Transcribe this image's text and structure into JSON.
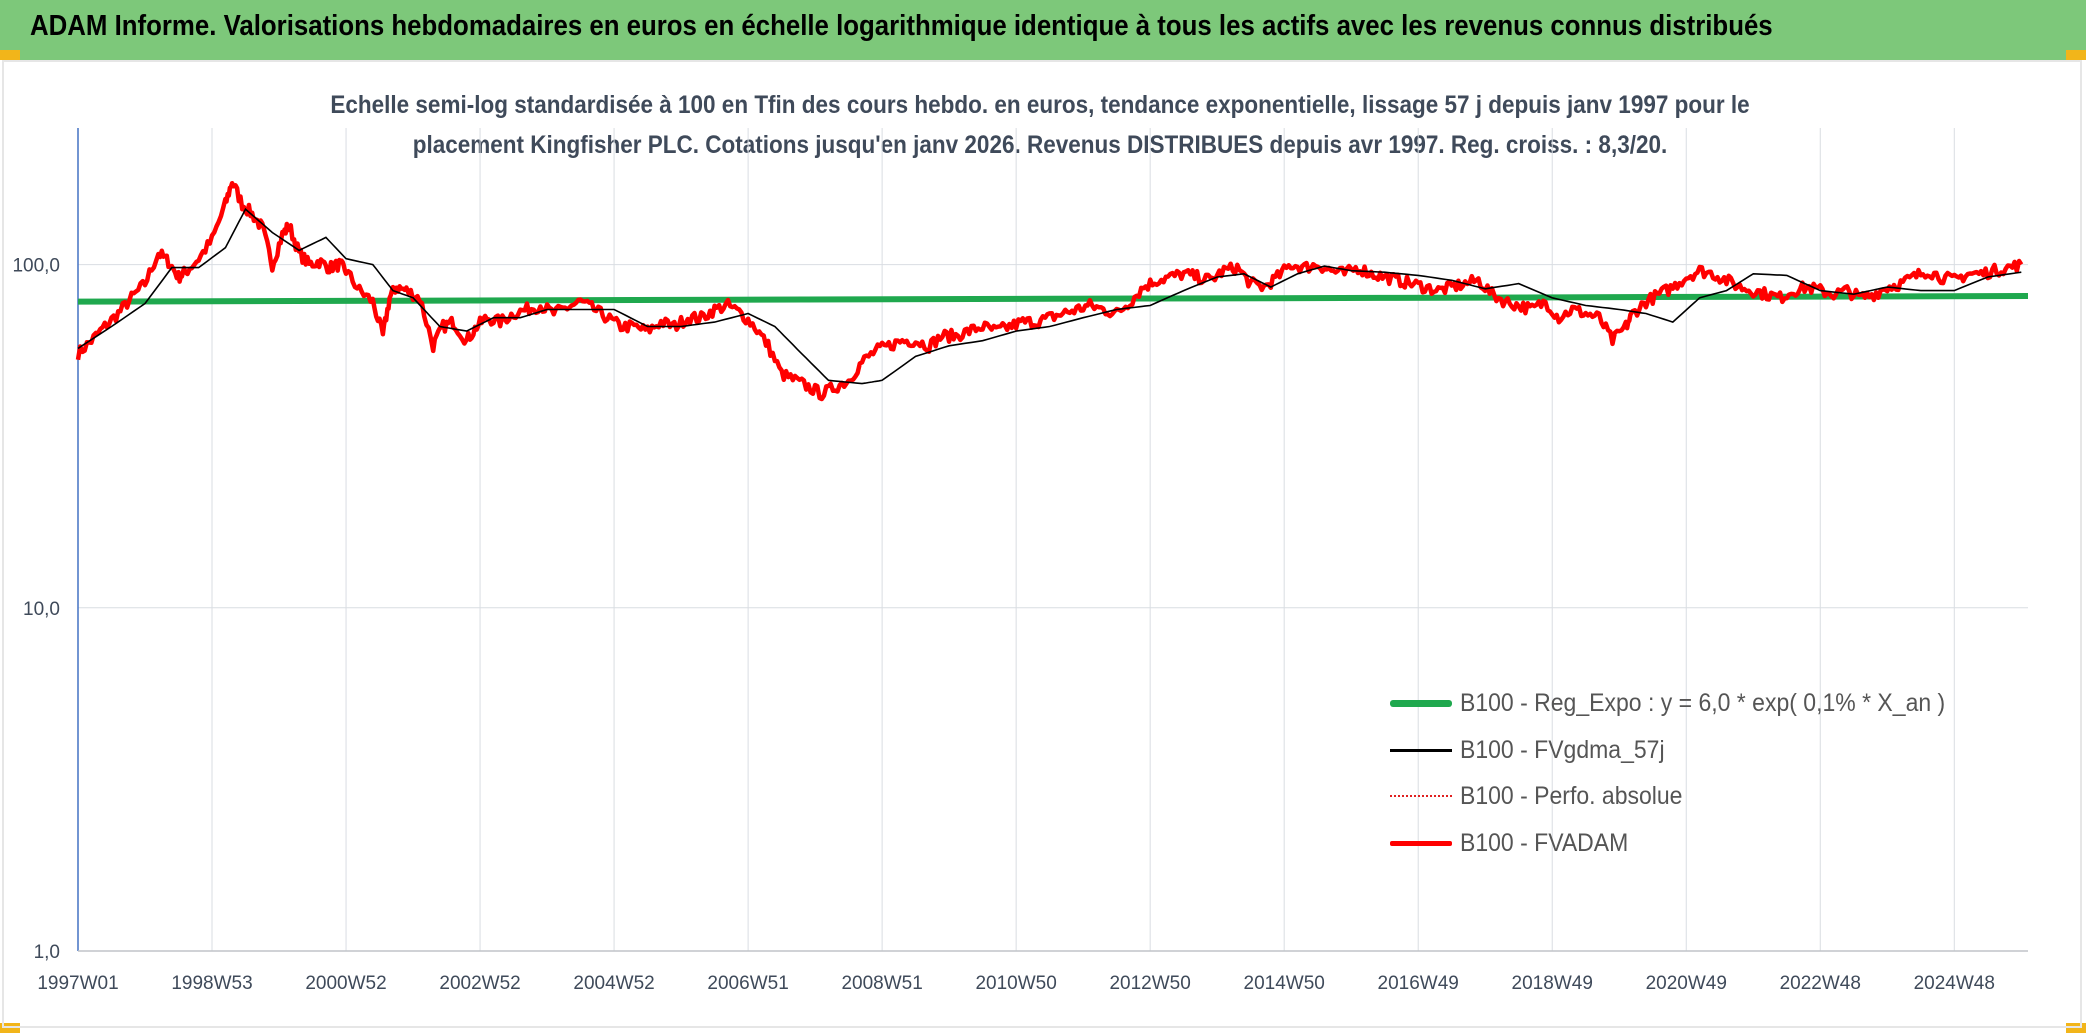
{
  "banner": {
    "title": "ADAM Informe. Valorisations hebdomadaires en euros en échelle logarithmique identique à tous les actifs avec les revenus connus distribués"
  },
  "chart_data": {
    "type": "line",
    "title_line1": "Echelle semi-log standardisée à 100 en Tfin des cours hebdo. en euros, tendance exponentielle, lissage 57 j depuis janv 1997 pour le",
    "title_line2": "placement Kingfisher PLC. Cotations jusqu'en janv 2026. Revenus DISTRIBUES depuis avr 1997. Reg. croiss. : 8,3/20.",
    "y_scale": "log",
    "ylim": [
      1,
      250
    ],
    "y_ticks": [
      {
        "value": 1,
        "label": "1,0"
      },
      {
        "value": 10,
        "label": "10,0"
      },
      {
        "value": 100,
        "label": "100,0"
      }
    ],
    "xlim": [
      1997.0,
      2026.1
    ],
    "x_ticks": [
      {
        "value": 1997.0,
        "label": "1997W01"
      },
      {
        "value": 1999.0,
        "label": "1998W53"
      },
      {
        "value": 2001.0,
        "label": "2000W52"
      },
      {
        "value": 2003.0,
        "label": "2002W52"
      },
      {
        "value": 2005.0,
        "label": "2004W52"
      },
      {
        "value": 2007.0,
        "label": "2006W51"
      },
      {
        "value": 2009.0,
        "label": "2008W51"
      },
      {
        "value": 2011.0,
        "label": "2010W50"
      },
      {
        "value": 2013.0,
        "label": "2012W50"
      },
      {
        "value": 2015.0,
        "label": "2014W50"
      },
      {
        "value": 2017.0,
        "label": "2016W49"
      },
      {
        "value": 2019.0,
        "label": "2018W49"
      },
      {
        "value": 2021.0,
        "label": "2020W49"
      },
      {
        "value": 2023.0,
        "label": "2022W48"
      },
      {
        "value": 2025.0,
        "label": "2024W48"
      }
    ],
    "grid": "vertical",
    "legend_position": "bottom-right",
    "series": [
      {
        "name": "B100 - Reg_Expo : y = 6,0 * exp( 0,1% *  X_an )",
        "color": "#1fa84e",
        "style": "thick",
        "x": [
          1997.0,
          2026.1
        ],
        "values": [
          78,
          81
        ]
      },
      {
        "name": "B100 - FVgdma_57j",
        "color": "#000000",
        "style": "thin",
        "x": [
          1997.0,
          1997.5,
          1998.0,
          1998.4,
          1998.8,
          1999.2,
          1999.5,
          1999.9,
          2000.3,
          2000.7,
          2001.0,
          2001.4,
          2001.7,
          2002.0,
          2002.4,
          2002.8,
          2003.2,
          2003.6,
          2004.0,
          2004.4,
          2005.0,
          2005.5,
          2006.0,
          2006.5,
          2007.0,
          2007.4,
          2007.8,
          2008.2,
          2008.7,
          2009.0,
          2009.5,
          2010.0,
          2010.5,
          2011.0,
          2011.5,
          2012.0,
          2012.5,
          2013.0,
          2013.5,
          2014.0,
          2014.4,
          2014.8,
          2015.2,
          2015.6,
          2016.0,
          2016.5,
          2017.0,
          2017.5,
          2018.0,
          2018.5,
          2019.0,
          2019.5,
          2020.0,
          2020.4,
          2020.8,
          2021.2,
          2021.6,
          2022.0,
          2022.5,
          2023.0,
          2023.5,
          2024.0,
          2024.5,
          2025.0,
          2025.5,
          2026.0
        ],
        "values": [
          57,
          66,
          77,
          98,
          98,
          112,
          145,
          124,
          110,
          120,
          104,
          100,
          84,
          80,
          66,
          64,
          70,
          70,
          74,
          74,
          74,
          66,
          66,
          68,
          72,
          66,
          55,
          46,
          45,
          46,
          54,
          58,
          60,
          64,
          66,
          70,
          74,
          76,
          84,
          92,
          94,
          86,
          94,
          99,
          96,
          95,
          93,
          90,
          85,
          88,
          80,
          76,
          74,
          72,
          68,
          80,
          84,
          94,
          93,
          84,
          82,
          86,
          84,
          84,
          92,
          95
        ]
      },
      {
        "name": "B100 - Perfo. absolue",
        "color": "#e02020",
        "style": "dotted",
        "x": [],
        "values": []
      },
      {
        "name": "B100 - FVADAM",
        "color": "#ff0000",
        "style": "thick",
        "x": [
          1997.0,
          1997.2,
          1997.4,
          1997.6,
          1997.8,
          1998.0,
          1998.2,
          1998.35,
          1998.5,
          1998.6,
          1998.8,
          1999.0,
          1999.2,
          1999.3,
          1999.45,
          1999.6,
          1999.75,
          1999.9,
          2000.05,
          2000.15,
          2000.3,
          2000.45,
          2000.6,
          2000.75,
          2000.9,
          2001.0,
          2001.2,
          2001.4,
          2001.55,
          2001.65,
          2001.75,
          2001.9,
          2002.1,
          2002.3,
          2002.45,
          2002.6,
          2002.8,
          2002.95,
          2003.1,
          2003.3,
          2003.5,
          2003.7,
          2003.9,
          2004.1,
          2004.3,
          2004.5,
          2004.7,
          2004.9,
          2005.1,
          2005.3,
          2005.5,
          2005.7,
          2005.9,
          2006.1,
          2006.3,
          2006.5,
          2006.7,
          2006.9,
          2007.1,
          2007.3,
          2007.5,
          2007.7,
          2007.9,
          2008.1,
          2008.3,
          2008.5,
          2008.7,
          2008.9,
          2009.1,
          2009.3,
          2009.5,
          2009.7,
          2009.9,
          2010.1,
          2010.3,
          2010.5,
          2010.7,
          2010.9,
          2011.1,
          2011.3,
          2011.5,
          2011.7,
          2011.9,
          2012.1,
          2012.3,
          2012.5,
          2012.7,
          2012.9,
          2013.1,
          2013.3,
          2013.5,
          2013.7,
          2013.9,
          2014.1,
          2014.3,
          2014.5,
          2014.7,
          2014.9,
          2015.1,
          2015.3,
          2015.5,
          2015.7,
          2015.9,
          2016.1,
          2016.3,
          2016.5,
          2016.7,
          2016.9,
          2017.1,
          2017.3,
          2017.5,
          2017.7,
          2017.9,
          2018.1,
          2018.3,
          2018.5,
          2018.7,
          2018.9,
          2019.1,
          2019.3,
          2019.5,
          2019.7,
          2019.9,
          2020.1,
          2020.2,
          2020.4,
          2020.6,
          2020.8,
          2021.0,
          2021.2,
          2021.4,
          2021.6,
          2021.8,
          2022.0,
          2022.2,
          2022.4,
          2022.6,
          2022.8,
          2023.0,
          2023.2,
          2023.4,
          2023.6,
          2023.8,
          2024.0,
          2024.2,
          2024.4,
          2024.6,
          2024.8,
          2025.0,
          2025.2,
          2025.4,
          2025.6,
          2025.8,
          2026.0
        ],
        "values": [
          55,
          60,
          66,
          72,
          80,
          88,
          108,
          102,
          92,
          95,
          104,
          118,
          150,
          175,
          150,
          140,
          128,
          100,
          122,
          130,
          108,
          100,
          102,
          98,
          100,
          96,
          84,
          78,
          62,
          80,
          86,
          84,
          80,
          58,
          66,
          68,
          60,
          66,
          70,
          68,
          72,
          74,
          76,
          72,
          75,
          78,
          74,
          70,
          66,
          66,
          64,
          68,
          66,
          70,
          70,
          74,
          76,
          72,
          66,
          58,
          48,
          46,
          44,
          42,
          44,
          46,
          52,
          56,
          58,
          60,
          60,
          58,
          62,
          62,
          64,
          66,
          64,
          66,
          68,
          68,
          70,
          72,
          74,
          76,
          74,
          72,
          78,
          86,
          90,
          92,
          94,
          92,
          90,
          96,
          98,
          88,
          86,
          92,
          100,
          98,
          100,
          96,
          94,
          98,
          94,
          92,
          90,
          88,
          86,
          84,
          86,
          88,
          90,
          82,
          78,
          76,
          74,
          78,
          70,
          74,
          72,
          70,
          60,
          66,
          72,
          78,
          82,
          86,
          92,
          96,
          94,
          90,
          86,
          84,
          82,
          80,
          84,
          86,
          84,
          82,
          84,
          80,
          82,
          86,
          88,
          92,
          96,
          92,
          90,
          94,
          94,
          96,
          98,
          100
        ],
        "noise": true
      }
    ]
  }
}
